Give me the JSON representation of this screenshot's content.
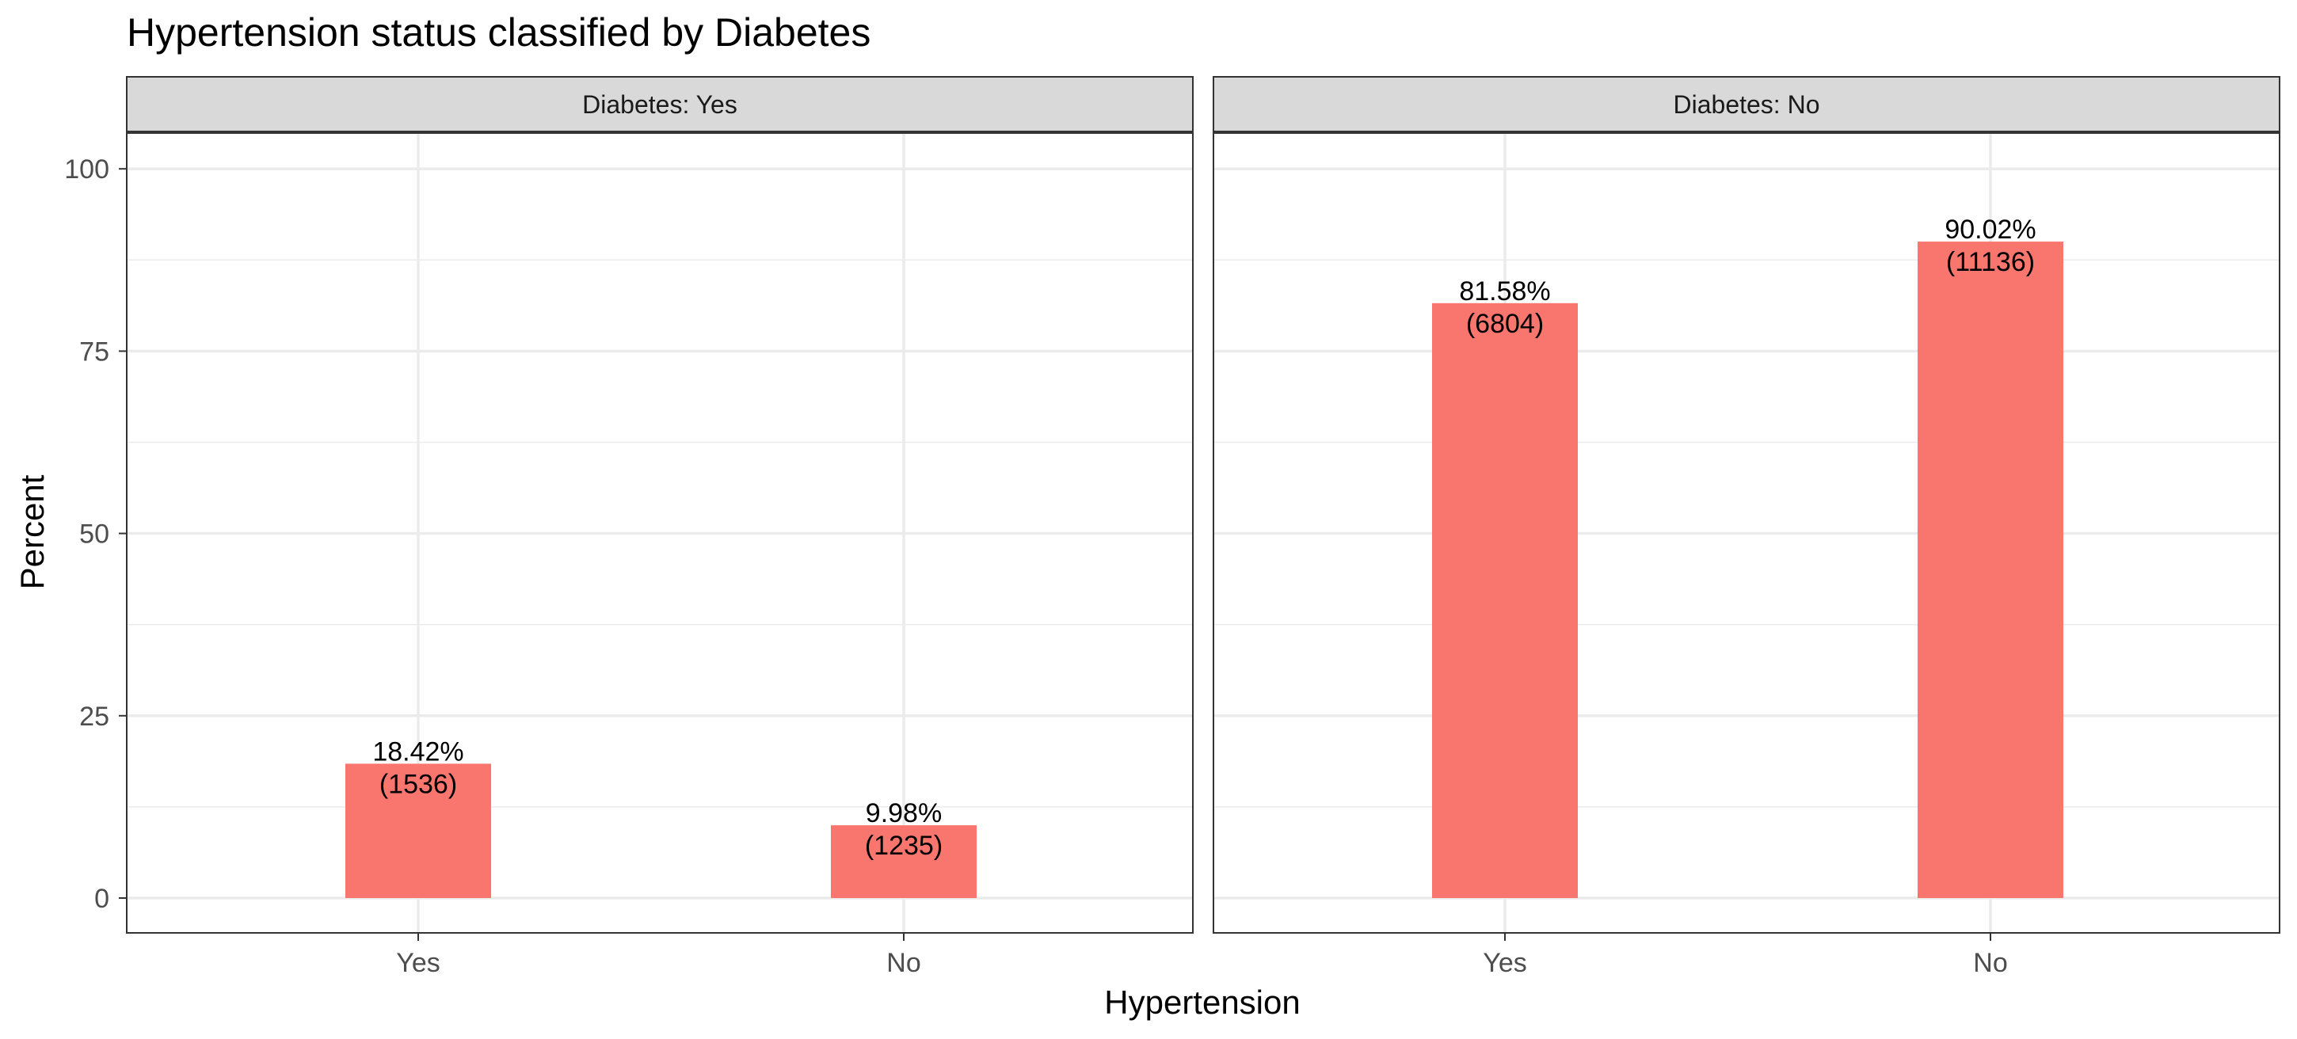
{
  "chart_data": {
    "type": "bar",
    "title": "Hypertension status classified by Diabetes",
    "xlabel": "Hypertension",
    "ylabel": "Percent",
    "ylim": [
      0,
      105
    ],
    "yticks": [
      0,
      25,
      50,
      75,
      100
    ],
    "categories": [
      "Yes",
      "No"
    ],
    "facets": [
      {
        "strip": "Diabetes: Yes",
        "values": [
          18.42,
          9.98
        ],
        "labels": [
          {
            "pct": "18.42%",
            "count": "(1536)"
          },
          {
            "pct": "9.98%",
            "count": "(1235)"
          }
        ]
      },
      {
        "strip": "Diabetes: No",
        "values": [
          81.58,
          90.02
        ],
        "labels": [
          {
            "pct": "81.58%",
            "count": "(6804)"
          },
          {
            "pct": "90.02%",
            "count": "(11136)"
          }
        ]
      }
    ],
    "grid": true,
    "colors": {
      "bar": "#F8766D",
      "strip_fill": "#D9D9D9",
      "grid": "#EBEBEB",
      "panel_border": "#333333"
    }
  }
}
